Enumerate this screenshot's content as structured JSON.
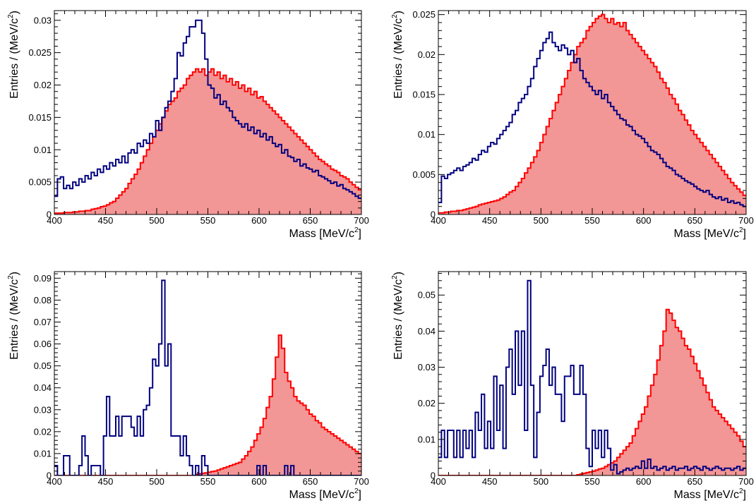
{
  "colors": {
    "blue": "#000080",
    "red": "#ff0000",
    "red_fill": "#f39696",
    "axis": "#000000"
  },
  "chart_data": [
    {
      "type": "histogram",
      "xlabel": "Mass [MeV/c",
      "ylabel": "Entries / (MeV/c",
      "label_exponent": "2",
      "xlim": [
        400,
        700
      ],
      "ylim": [
        0,
        0.0315
      ],
      "xticks": [
        "400",
        "450",
        "500",
        "550",
        "600",
        "650",
        "700"
      ],
      "yticks": [
        "0",
        "0.005",
        "0.01",
        "0.015",
        "0.02",
        "0.025",
        "0.03"
      ],
      "yticks_values": [
        0,
        0.005,
        0.01,
        0.015,
        0.02,
        0.025,
        0.03
      ],
      "bin_width": 3,
      "series": [
        {
          "color": "blue",
          "style": "step",
          "values": [
            0.0028,
            0.0055,
            0.0058,
            0.004,
            0.0045,
            0.004,
            0.005,
            0.0045,
            0.0055,
            0.005,
            0.006,
            0.0055,
            0.0065,
            0.006,
            0.007,
            0.0065,
            0.0075,
            0.007,
            0.008,
            0.0075,
            0.0085,
            0.008,
            0.009,
            0.008,
            0.0095,
            0.01,
            0.0095,
            0.011,
            0.0105,
            0.0115,
            0.011,
            0.0125,
            0.012,
            0.0145,
            0.013,
            0.015,
            0.0165,
            0.0175,
            0.019,
            0.021,
            0.025,
            0.0245,
            0.0265,
            0.0275,
            0.029,
            0.029,
            0.03,
            0.03,
            0.028,
            0.024,
            0.02,
            0.0195,
            0.018,
            0.0185,
            0.017,
            0.0175,
            0.0165,
            0.016,
            0.015,
            0.0145,
            0.014,
            0.0135,
            0.014,
            0.013,
            0.0135,
            0.0125,
            0.013,
            0.012,
            0.0125,
            0.0115,
            0.012,
            0.011,
            0.0105,
            0.0108,
            0.0095,
            0.01,
            0.009,
            0.0088,
            0.0082,
            0.0085,
            0.0075,
            0.0078,
            0.0072,
            0.007,
            0.0066,
            0.0068,
            0.006,
            0.0058,
            0.0055,
            0.0052,
            0.0048,
            0.005,
            0.0044,
            0.0046,
            0.004,
            0.0038,
            0.0035,
            0.0032,
            0.0028,
            0.0025
          ]
        },
        {
          "color": "red",
          "style": "filled",
          "values": [
            0.0002,
            0.0002,
            0.0002,
            0.0003,
            0.0003,
            0.0003,
            0.0004,
            0.0004,
            0.0005,
            0.0005,
            0.0006,
            0.0006,
            0.0008,
            0.0009,
            0.001,
            0.0012,
            0.0013,
            0.0015,
            0.0018,
            0.002,
            0.0025,
            0.003,
            0.0035,
            0.004,
            0.0048,
            0.0055,
            0.0062,
            0.007,
            0.008,
            0.009,
            0.01,
            0.011,
            0.012,
            0.013,
            0.014,
            0.015,
            0.016,
            0.017,
            0.0175,
            0.018,
            0.019,
            0.0195,
            0.02,
            0.021,
            0.0215,
            0.022,
            0.0225,
            0.022,
            0.0225,
            0.0215,
            0.022,
            0.0225,
            0.0215,
            0.022,
            0.021,
            0.0215,
            0.0205,
            0.021,
            0.02,
            0.0205,
            0.0195,
            0.02,
            0.019,
            0.0195,
            0.0185,
            0.019,
            0.018,
            0.0182,
            0.0175,
            0.017,
            0.0165,
            0.016,
            0.0155,
            0.015,
            0.0145,
            0.014,
            0.0135,
            0.013,
            0.0125,
            0.012,
            0.0115,
            0.011,
            0.0105,
            0.01,
            0.0095,
            0.009,
            0.0085,
            0.0082,
            0.0078,
            0.0075,
            0.007,
            0.0068,
            0.0065,
            0.006,
            0.0058,
            0.0055,
            0.005,
            0.0046,
            0.0042,
            0.0038
          ]
        }
      ]
    },
    {
      "type": "histogram",
      "xlabel": "Mass [MeV/c",
      "ylabel": "Entries / (MeV/c",
      "label_exponent": "2",
      "xlim": [
        400,
        700
      ],
      "ylim": [
        0,
        0.0255
      ],
      "xticks": [
        "400",
        "450",
        "500",
        "550",
        "600",
        "650",
        "700"
      ],
      "yticks": [
        "0",
        "0.005",
        "0.01",
        "0.015",
        "0.02",
        "0.025"
      ],
      "yticks_values": [
        0,
        0.005,
        0.01,
        0.015,
        0.02,
        0.025
      ],
      "bin_width": 3,
      "series": [
        {
          "color": "blue",
          "style": "step",
          "values": [
            0.0015,
            0.0048,
            0.0045,
            0.005,
            0.0052,
            0.0055,
            0.0058,
            0.0055,
            0.006,
            0.0062,
            0.0065,
            0.007,
            0.0068,
            0.0075,
            0.008,
            0.0078,
            0.0085,
            0.009,
            0.0088,
            0.0095,
            0.01,
            0.0105,
            0.011,
            0.0115,
            0.0125,
            0.013,
            0.014,
            0.0145,
            0.015,
            0.016,
            0.017,
            0.0185,
            0.0195,
            0.0205,
            0.0215,
            0.022,
            0.0228,
            0.0215,
            0.021,
            0.0205,
            0.0212,
            0.0208,
            0.02,
            0.0205,
            0.019,
            0.0195,
            0.018,
            0.017,
            0.0165,
            0.016,
            0.0155,
            0.015,
            0.0155,
            0.0145,
            0.015,
            0.014,
            0.0135,
            0.013,
            0.0125,
            0.012,
            0.0118,
            0.0112,
            0.011,
            0.0105,
            0.01,
            0.0098,
            0.0095,
            0.009,
            0.0085,
            0.008,
            0.0078,
            0.0075,
            0.007,
            0.0065,
            0.006,
            0.0058,
            0.0055,
            0.005,
            0.0048,
            0.0045,
            0.0042,
            0.004,
            0.0038,
            0.0035,
            0.0032,
            0.003,
            0.0028,
            0.003,
            0.0025,
            0.0022,
            0.002,
            0.0022,
            0.0018,
            0.002,
            0.0015,
            0.0017,
            0.0014,
            0.0015,
            0.0012,
            0.001
          ]
        },
        {
          "color": "red",
          "style": "filled",
          "values": [
            0.0002,
            0.0002,
            0.0003,
            0.0003,
            0.0004,
            0.0004,
            0.0005,
            0.0005,
            0.0006,
            0.0007,
            0.0008,
            0.0009,
            0.001,
            0.0012,
            0.0013,
            0.0014,
            0.0015,
            0.0016,
            0.0017,
            0.0018,
            0.002,
            0.0022,
            0.0025,
            0.0028,
            0.003,
            0.0035,
            0.004,
            0.0045,
            0.0052,
            0.0058,
            0.0065,
            0.0072,
            0.008,
            0.009,
            0.01,
            0.011,
            0.012,
            0.013,
            0.014,
            0.015,
            0.016,
            0.017,
            0.018,
            0.019,
            0.02,
            0.021,
            0.0215,
            0.022,
            0.023,
            0.0235,
            0.024,
            0.0245,
            0.0248,
            0.025,
            0.0245,
            0.024,
            0.0245,
            0.0238,
            0.024,
            0.0235,
            0.024,
            0.023,
            0.0225,
            0.022,
            0.0215,
            0.021,
            0.0205,
            0.02,
            0.0195,
            0.019,
            0.0185,
            0.0178,
            0.017,
            0.0165,
            0.0158,
            0.015,
            0.0145,
            0.0138,
            0.013,
            0.0125,
            0.0118,
            0.0112,
            0.0105,
            0.01,
            0.0095,
            0.009,
            0.0085,
            0.008,
            0.0075,
            0.007,
            0.0065,
            0.006,
            0.0055,
            0.005,
            0.0045,
            0.004,
            0.0036,
            0.0032,
            0.0028,
            0.0024
          ]
        }
      ]
    },
    {
      "type": "histogram",
      "xlabel": "Mass [MeV/c",
      "ylabel": "Entries / (MeV/c",
      "label_exponent": "2",
      "xlim": [
        400,
        700
      ],
      "ylim": [
        0,
        0.093
      ],
      "xticks": [
        "400",
        "450",
        "500",
        "550",
        "600",
        "650",
        "700"
      ],
      "yticks": [
        "0",
        "0.01",
        "0.02",
        "0.03",
        "0.04",
        "0.05",
        "0.06",
        "0.07",
        "0.08",
        "0.09"
      ],
      "yticks_values": [
        0,
        0.01,
        0.02,
        0.03,
        0.04,
        0.05,
        0.06,
        0.07,
        0.08,
        0.09
      ],
      "bin_width": 3,
      "series": [
        {
          "color": "blue",
          "style": "step",
          "values": [
            0.0045,
            0,
            0,
            0.009,
            0.009,
            0,
            0,
            0,
            0.0045,
            0.018,
            0.009,
            0,
            0.0045,
            0.0045,
            0.0045,
            0,
            0.018,
            0.036,
            0.018,
            0.018,
            0.027,
            0.018,
            0.027,
            0.027,
            0.027,
            0.022,
            0.018,
            0.027,
            0.018,
            0.03,
            0.032,
            0.04,
            0.053,
            0.05,
            0.06,
            0.089,
            0.05,
            0.06,
            0.018,
            0.018,
            0.018,
            0.009,
            0.018,
            0.009,
            0.0045,
            0,
            0.0045,
            0,
            0.009,
            0.0045,
            0,
            0,
            0,
            0,
            0,
            0,
            0,
            0,
            0,
            0,
            0,
            0,
            0,
            0,
            0,
            0,
            0.0045,
            0,
            0.0045,
            0,
            0,
            0,
            0,
            0,
            0,
            0.0045,
            0,
            0.0045,
            0,
            0,
            0,
            0,
            0,
            0,
            0,
            0,
            0,
            0,
            0,
            0,
            0,
            0,
            0,
            0,
            0,
            0,
            0,
            0,
            0,
            0
          ]
        },
        {
          "color": "red",
          "style": "filled",
          "values": [
            0,
            0,
            0,
            0,
            0,
            0,
            0,
            0,
            0,
            0,
            0,
            0,
            0,
            0,
            0,
            0,
            0,
            0,
            0,
            0,
            0,
            0,
            0,
            0,
            0,
            0,
            0,
            0,
            0,
            0,
            0,
            0,
            0,
            0,
            0,
            0,
            0,
            0,
            0,
            0,
            0,
            0,
            0,
            0,
            0,
            0,
            0.0005,
            0.0008,
            0.001,
            0.0012,
            0.0015,
            0.0018,
            0.002,
            0.0025,
            0.003,
            0.0035,
            0.004,
            0.0045,
            0.005,
            0.0055,
            0.006,
            0.0075,
            0.009,
            0.011,
            0.013,
            0.016,
            0.019,
            0.022,
            0.026,
            0.031,
            0.036,
            0.044,
            0.054,
            0.064,
            0.058,
            0.047,
            0.043,
            0.04,
            0.036,
            0.034,
            0.033,
            0.032,
            0.03,
            0.028,
            0.027,
            0.025,
            0.024,
            0.022,
            0.021,
            0.02,
            0.019,
            0.018,
            0.017,
            0.016,
            0.015,
            0.014,
            0.013,
            0.012,
            0.011,
            0.01
          ]
        }
      ]
    },
    {
      "type": "histogram",
      "xlabel": "Mass [MeV/c",
      "ylabel": "Entries / (MeV/c",
      "label_exponent": "2",
      "xlim": [
        400,
        700
      ],
      "ylim": [
        0,
        0.0565
      ],
      "xticks": [
        "400",
        "450",
        "500",
        "550",
        "600",
        "650",
        "700"
      ],
      "yticks": [
        "0",
        "0.01",
        "0.02",
        "0.03",
        "0.04",
        "0.05"
      ],
      "yticks_values": [
        0,
        0.01,
        0.02,
        0.03,
        0.04,
        0.05
      ],
      "bin_width": 3,
      "series": [
        {
          "color": "blue",
          "style": "step",
          "values": [
            0.005,
            0.0125,
            0.005,
            0.0125,
            0.0125,
            0.005,
            0.0125,
            0.005,
            0.0125,
            0.0075,
            0.0125,
            0.005,
            0.0175,
            0.0125,
            0.0225,
            0.0075,
            0.015,
            0.0075,
            0.0275,
            0.0125,
            0.025,
            0.0075,
            0.03,
            0.035,
            0.0225,
            0.04,
            0.025,
            0.04,
            0.0125,
            0.054,
            0.025,
            0.005,
            0.0175,
            0.0275,
            0.0305,
            0.035,
            0.025,
            0.03,
            0.0225,
            0.0225,
            0.015,
            0.0275,
            0.0275,
            0.0305,
            0.0225,
            0.0225,
            0.0305,
            0.0225,
            0.0075,
            0.0025,
            0.0125,
            0.0075,
            0.0125,
            0.005,
            0.0125,
            0.0075,
            0.0015,
            0.003,
            0.0005,
            0.001,
            0.0015,
            0.002,
            0.0015,
            0.002,
            0.0025,
            0.002,
            0.004,
            0.002,
            0.0045,
            0.002,
            0.0025,
            0.0015,
            0.002,
            0.0025,
            0.0015,
            0.002,
            0.0025,
            0.0015,
            0.002,
            0.002,
            0.0025,
            0.0015,
            0.002,
            0.0025,
            0.002,
            0.0015,
            0.0025,
            0.002,
            0.0015,
            0.002,
            0.0025,
            0.002,
            0.0015,
            0.002,
            0.002,
            0.0015,
            0.002,
            0.0025,
            0.0015,
            0.002
          ]
        },
        {
          "color": "red",
          "style": "filled",
          "values": [
            0,
            0,
            0,
            0,
            0,
            0,
            0,
            0,
            0,
            0,
            0,
            0,
            0,
            0,
            0,
            0,
            0,
            0,
            0,
            0,
            0,
            0,
            0,
            0,
            0,
            0,
            0,
            0,
            0,
            0,
            0,
            0,
            0,
            0,
            0,
            0,
            0,
            0,
            0,
            0,
            0,
            0,
            0,
            0,
            0,
            0.0002,
            0.0004,
            0.0006,
            0.0008,
            0.001,
            0.0012,
            0.0015,
            0.0018,
            0.002,
            0.0025,
            0.003,
            0.0035,
            0.004,
            0.005,
            0.006,
            0.007,
            0.008,
            0.009,
            0.011,
            0.013,
            0.015,
            0.017,
            0.019,
            0.022,
            0.025,
            0.028,
            0.032,
            0.036,
            0.04,
            0.046,
            0.045,
            0.043,
            0.041,
            0.04,
            0.038,
            0.036,
            0.035,
            0.033,
            0.031,
            0.029,
            0.027,
            0.025,
            0.023,
            0.021,
            0.019,
            0.018,
            0.017,
            0.016,
            0.015,
            0.014,
            0.013,
            0.012,
            0.011,
            0.0095,
            0.008
          ]
        }
      ]
    }
  ]
}
